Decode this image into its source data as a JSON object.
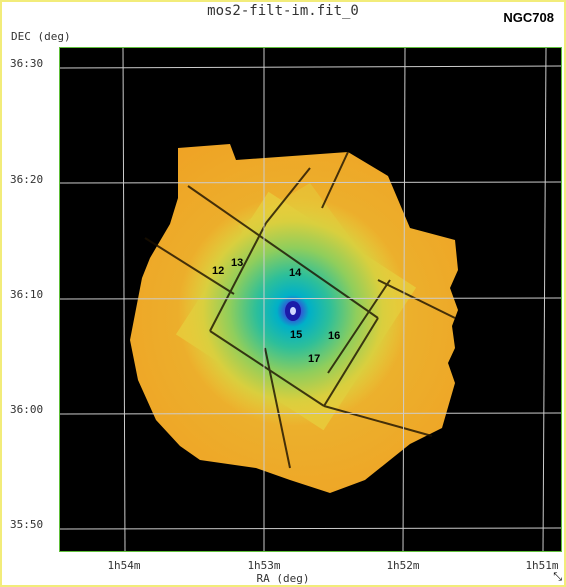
{
  "window": {
    "title": "mos2-filt-im.fit_0",
    "object_name": "NGC708",
    "resize_glyph": "⤡"
  },
  "axes": {
    "y_label": "DEC (deg)",
    "x_label": "RA (deg)",
    "y_ticks": [
      "36:30",
      "36:20",
      "36:10",
      "36:00",
      "35:50"
    ],
    "x_ticks": [
      "1h54m",
      "1h53m",
      "1h52m",
      "1h51m"
    ]
  },
  "sources": [
    "12",
    "13",
    "14",
    "15",
    "16",
    "17"
  ],
  "colors": {
    "frame_border": "#f2ec7a",
    "plot_border": "#5fbf3a",
    "background": "#000000",
    "outer_field": "#f1a627",
    "inner_field": "#e7cd3b",
    "core": "#00b0c8",
    "peak": "#1b1ba8",
    "grid": "#cccccc"
  }
}
